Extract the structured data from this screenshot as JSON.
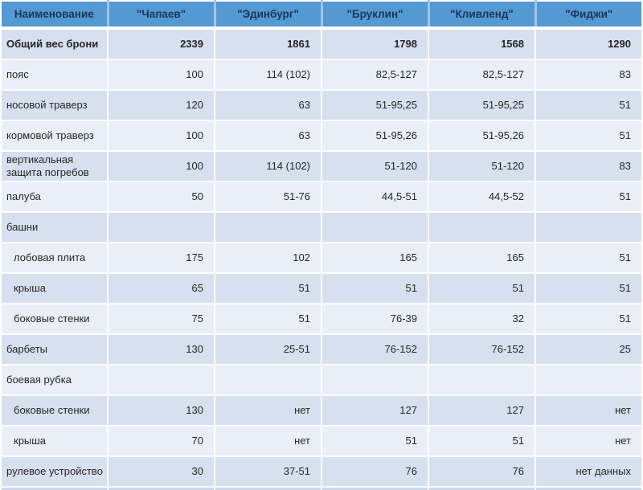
{
  "table": {
    "columns": [
      "Наименование",
      "\"Чапаев\"",
      "\"Эдинбург\"",
      "\"Бруклин\"",
      "\"Кливленд\"",
      "\"Фиджи\""
    ],
    "rows": [
      {
        "label": "Общий вес брони",
        "values": [
          "2339",
          "1861",
          "1798",
          "1568",
          "1290"
        ]
      },
      {
        "label": "пояс",
        "values": [
          "100",
          "114 (102)",
          "82,5-127",
          "82,5-127",
          "83"
        ]
      },
      {
        "label": "носовой траверз",
        "values": [
          "120",
          "63",
          "51-95,25",
          "51-95,25",
          "51"
        ]
      },
      {
        "label": "кормовой траверз",
        "values": [
          "100",
          "63",
          "51-95,26",
          "51-95,26",
          "51"
        ]
      },
      {
        "label": "вертикальная защита погребов",
        "values": [
          "100",
          "114 (102)",
          "51-120",
          "51-120",
          "83"
        ]
      },
      {
        "label": "палуба",
        "values": [
          "50",
          "51-76",
          "44,5-51",
          "44,5-52",
          "51"
        ]
      },
      {
        "label": "башни",
        "values": [
          "",
          "",
          "",
          "",
          ""
        ]
      },
      {
        "label": "лобовая плита",
        "values": [
          "175",
          "102",
          "165",
          "165",
          "51"
        ]
      },
      {
        "label": "крыша",
        "values": [
          "65",
          "51",
          "51",
          "51",
          "51"
        ]
      },
      {
        "label": "боковые стенки",
        "values": [
          "75",
          "51",
          "76-39",
          "32",
          "51"
        ]
      },
      {
        "label": "барбеты",
        "values": [
          "130",
          "25-51",
          "76-152",
          "76-152",
          "25"
        ]
      },
      {
        "label": "боевая рубка",
        "values": [
          "",
          "",
          "",
          "",
          ""
        ]
      },
      {
        "label": "боковые стенки",
        "values": [
          "130",
          "нет",
          "127",
          "127",
          "нет"
        ]
      },
      {
        "label": "крыша",
        "values": [
          "70",
          "нет",
          "51",
          "51",
          "нет"
        ]
      },
      {
        "label": "рулевое устройство",
        "values": [
          "30",
          "37-51",
          "76",
          "76",
          "нет данных"
        ]
      }
    ]
  },
  "colors": {
    "header_bg": "#5499d2",
    "header_text": "#17375e",
    "header_divider": "#9fc6e7",
    "band_dark": "#d6e0ef",
    "band_light": "#e9eff7",
    "body_text": "#262626",
    "grid": "#ffffff",
    "next_row_sliver": "#ccd8ea"
  }
}
